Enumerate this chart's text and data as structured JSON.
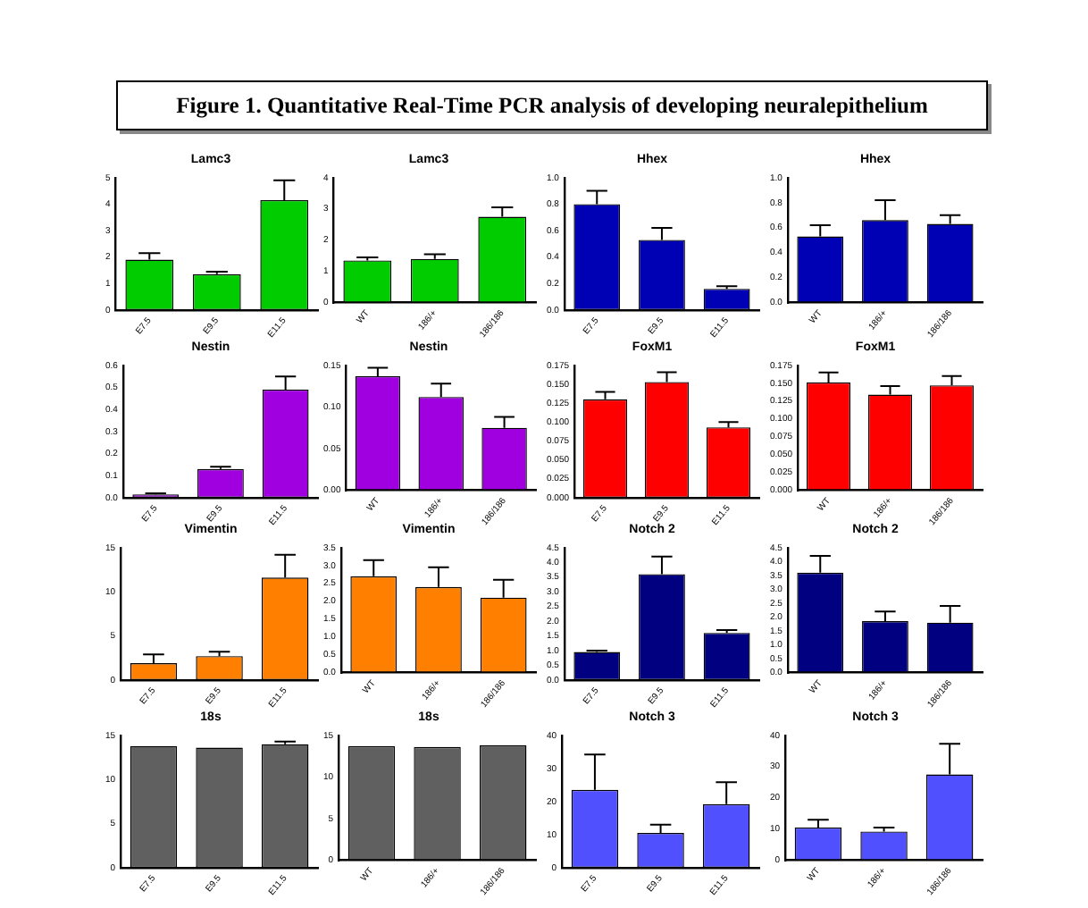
{
  "chart_data": [
    {
      "type": "other",
      "title": "Figure 1.  Quantitative Real-Time PCR analysis of developing neuralepithelium"
    },
    {
      "type": "bar",
      "title": "Lamc3",
      "categories": [
        "E7.5",
        "E9.5",
        "E11.5"
      ],
      "values": [
        1.9,
        1.35,
        4.15
      ],
      "errors": [
        [
          1.9,
          2.15
        ],
        [
          1.35,
          1.45
        ],
        [
          4.15,
          4.9
        ]
      ],
      "color": "#00cc00",
      "ylim": [
        0,
        5
      ],
      "yticks": [
        0,
        1,
        2,
        3,
        4,
        5
      ]
    },
    {
      "type": "bar",
      "title": "Lamc3",
      "categories": [
        "WT",
        "186/+",
        "186/186"
      ],
      "values": [
        1.35,
        1.4,
        2.75
      ],
      "errors": [
        [
          1.35,
          1.45
        ],
        [
          1.4,
          1.55
        ],
        [
          2.75,
          3.05
        ]
      ],
      "color": "#00cc00",
      "ylim": [
        0,
        4
      ],
      "yticks": [
        0,
        1,
        2,
        3,
        4
      ]
    },
    {
      "type": "bar",
      "title": "Hhex",
      "categories": [
        "E7.5",
        "E9.5",
        "E11.5"
      ],
      "values": [
        0.8,
        0.53,
        0.16
      ],
      "errors": [
        [
          0.8,
          0.9
        ],
        [
          0.53,
          0.62
        ],
        [
          0.16,
          0.18
        ]
      ],
      "color": "#0000b4",
      "ylim": [
        0,
        1
      ],
      "yticks": [
        {
          "value": 0,
          "label": "0.0"
        },
        {
          "value": 0.2,
          "label": "0.2"
        },
        {
          "value": 0.4,
          "label": "0.4"
        },
        {
          "value": 0.6,
          "label": "0.6"
        },
        {
          "value": 0.8,
          "label": "0.8"
        },
        {
          "value": 1,
          "label": "1.0"
        }
      ]
    },
    {
      "type": "bar",
      "title": "Hhex",
      "categories": [
        "WT",
        "186/+",
        "186/186"
      ],
      "values": [
        0.53,
        0.66,
        0.63
      ],
      "errors": [
        [
          0.53,
          0.62
        ],
        [
          0.66,
          0.82
        ],
        [
          0.63,
          0.7
        ]
      ],
      "color": "#0000b4",
      "ylim": [
        0,
        1
      ],
      "yticks": [
        {
          "value": 0,
          "label": "0.0"
        },
        {
          "value": 0.2,
          "label": "0.2"
        },
        {
          "value": 0.4,
          "label": "0.4"
        },
        {
          "value": 0.6,
          "label": "0.6"
        },
        {
          "value": 0.8,
          "label": "0.8"
        },
        {
          "value": 1,
          "label": "1.0"
        }
      ]
    },
    {
      "type": "bar",
      "title": "Nestin",
      "categories": [
        "E7.5",
        "E9.5",
        "E11.5"
      ],
      "values": [
        0.015,
        0.13,
        0.49
      ],
      "errors": [
        [
          0.015,
          0.02
        ],
        [
          0.13,
          0.14
        ],
        [
          0.49,
          0.55
        ]
      ],
      "color": "#a000e0",
      "ylim": [
        0,
        0.6
      ],
      "yticks": [
        {
          "value": 0,
          "label": "0.0"
        },
        0.1,
        0.2,
        0.3,
        0.4,
        0.5,
        0.6
      ]
    },
    {
      "type": "bar",
      "title": "Nestin",
      "categories": [
        "WT",
        "186/+",
        "186/186"
      ],
      "values": [
        0.137,
        0.112,
        0.075
      ],
      "errors": [
        [
          0.137,
          0.147
        ],
        [
          0.112,
          0.128
        ],
        [
          0.075,
          0.088
        ]
      ],
      "color": "#a000e0",
      "ylim": [
        0,
        0.15
      ],
      "yticks": [
        {
          "value": 0,
          "label": "0.00"
        },
        {
          "value": 0.05,
          "label": "0.05"
        },
        {
          "value": 0.1,
          "label": "0.10"
        },
        {
          "value": 0.15,
          "label": "0.15"
        }
      ]
    },
    {
      "type": "bar",
      "title": "FoxM1",
      "categories": [
        "E7.5",
        "E9.5",
        "E11.5"
      ],
      "values": [
        0.13,
        0.153,
        0.093
      ],
      "errors": [
        [
          0.13,
          0.14
        ],
        [
          0.153,
          0.166
        ],
        [
          0.093,
          0.1
        ]
      ],
      "color": "#ff0000",
      "ylim": [
        0,
        0.175
      ],
      "yticks": [
        {
          "value": 0,
          "label": "0.000"
        },
        {
          "value": 0.025,
          "label": "0.025"
        },
        {
          "value": 0.05,
          "label": "0.050"
        },
        {
          "value": 0.075,
          "label": "0.075"
        },
        {
          "value": 0.1,
          "label": "0.100"
        },
        {
          "value": 0.125,
          "label": "0.125"
        },
        {
          "value": 0.15,
          "label": "0.150"
        },
        {
          "value": 0.175,
          "label": "0.175"
        }
      ]
    },
    {
      "type": "bar",
      "title": "FoxM1",
      "categories": [
        "WT",
        "186/+",
        "186/186"
      ],
      "values": [
        0.151,
        0.134,
        0.147
      ],
      "errors": [
        [
          0.151,
          0.165
        ],
        [
          0.134,
          0.146
        ],
        [
          0.147,
          0.16
        ]
      ],
      "color": "#ff0000",
      "ylim": [
        0,
        0.175
      ],
      "yticks": [
        {
          "value": 0,
          "label": "0.000"
        },
        {
          "value": 0.025,
          "label": "0.025"
        },
        {
          "value": 0.05,
          "label": "0.050"
        },
        {
          "value": 0.075,
          "label": "0.075"
        },
        {
          "value": 0.1,
          "label": "0.100"
        },
        {
          "value": 0.125,
          "label": "0.125"
        },
        {
          "value": 0.15,
          "label": "0.150"
        },
        {
          "value": 0.175,
          "label": "0.175"
        }
      ]
    },
    {
      "type": "bar",
      "title": "Vimentin",
      "categories": [
        "E7.5",
        "E9.5",
        "E11.5"
      ],
      "values": [
        1.9,
        2.7,
        11.6
      ],
      "errors": [
        [
          1.9,
          2.9
        ],
        [
          2.7,
          3.2
        ],
        [
          11.6,
          14.2
        ]
      ],
      "color": "#ff8000",
      "ylim": [
        0,
        15
      ],
      "yticks": [
        0,
        5,
        10,
        15
      ]
    },
    {
      "type": "bar",
      "title": "Vimentin",
      "categories": [
        "WT",
        "186/+",
        "186/186"
      ],
      "values": [
        2.7,
        2.4,
        2.1
      ],
      "errors": [
        [
          2.7,
          3.15
        ],
        [
          2.4,
          2.95
        ],
        [
          2.1,
          2.6
        ]
      ],
      "color": "#ff8000",
      "ylim": [
        0,
        3.5
      ],
      "yticks": [
        {
          "value": 0,
          "label": "0.0"
        },
        0.5,
        {
          "value": 1,
          "label": "1.0"
        },
        1.5,
        {
          "value": 2,
          "label": "2.0"
        },
        2.5,
        {
          "value": 3,
          "label": "3.0"
        },
        3.5
      ]
    },
    {
      "type": "bar",
      "title": "Notch 2",
      "categories": [
        "E7.5",
        "E9.5",
        "E11.5"
      ],
      "values": [
        0.95,
        3.6,
        1.6
      ],
      "errors": [
        [
          0.95,
          1
        ],
        [
          3.6,
          4.2
        ],
        [
          1.6,
          1.7
        ]
      ],
      "color": "#000080",
      "ylim": [
        0,
        4.5
      ],
      "yticks": [
        {
          "value": 0,
          "label": "0.0"
        },
        0.5,
        {
          "value": 1,
          "label": "1.0"
        },
        1.5,
        {
          "value": 2,
          "label": "2.0"
        },
        2.5,
        {
          "value": 3,
          "label": "3.0"
        },
        3.5,
        {
          "value": 4,
          "label": "4.0"
        },
        4.5
      ]
    },
    {
      "type": "bar",
      "title": "Notch 2",
      "categories": [
        "WT",
        "186/+",
        "186/186"
      ],
      "values": [
        3.6,
        1.85,
        1.8
      ],
      "errors": [
        [
          3.6,
          4.2
        ],
        [
          1.85,
          2.2
        ],
        [
          1.8,
          2.4
        ]
      ],
      "color": "#000080",
      "ylim": [
        0,
        4.5
      ],
      "yticks": [
        {
          "value": 0,
          "label": "0.0"
        },
        0.5,
        {
          "value": 1,
          "label": "1.0"
        },
        1.5,
        {
          "value": 2,
          "label": "2.0"
        },
        2.5,
        {
          "value": 3,
          "label": "3.0"
        },
        3.5,
        {
          "value": 4,
          "label": "4.0"
        },
        4.5
      ]
    },
    {
      "type": "bar",
      "title": "18s",
      "categories": [
        "E7.5",
        "E9.5",
        "E11.5"
      ],
      "values": [
        13.8,
        13.6,
        14
      ],
      "errors": [
        null,
        null,
        [
          14,
          14.3
        ]
      ],
      "color": "#606060",
      "ylim": [
        0,
        15
      ],
      "yticks": [
        0,
        5,
        10,
        15
      ]
    },
    {
      "type": "bar",
      "title": "18s",
      "categories": [
        "WT",
        "186/+",
        "186/186"
      ],
      "values": [
        13.7,
        13.6,
        13.8
      ],
      "color": "#606060",
      "ylim": [
        0,
        15
      ],
      "yticks": [
        0,
        5,
        10,
        15
      ]
    },
    {
      "type": "bar",
      "title": "Notch 3",
      "categories": [
        "E7.5",
        "E9.5",
        "E11.5"
      ],
      "values": [
        23.5,
        10.5,
        19.2
      ],
      "errors": [
        [
          23.5,
          34.2
        ],
        [
          10.5,
          13
        ],
        [
          19.2,
          25.8
        ]
      ],
      "color": "#5050ff",
      "ylim": [
        0,
        40
      ],
      "yticks": [
        0,
        10,
        20,
        30,
        40
      ]
    },
    {
      "type": "bar",
      "title": "Notch 3",
      "categories": [
        "WT",
        "186/+",
        "186/186"
      ],
      "values": [
        10.5,
        9.2,
        27.5
      ],
      "errors": [
        [
          10.5,
          13
        ],
        [
          9.2,
          10.5
        ],
        [
          27.5,
          37.3
        ]
      ],
      "color": "#5050ff",
      "ylim": [
        0,
        40
      ],
      "yticks": [
        0,
        10,
        20,
        30,
        40
      ]
    }
  ]
}
